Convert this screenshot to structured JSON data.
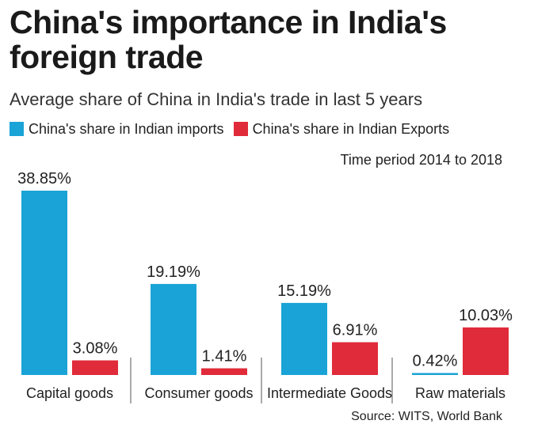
{
  "title": "China's importance in India's foreign trade",
  "subtitle": "Average share of China in India's trade in last 5 years",
  "note": "Time period 2014 to 2018",
  "source": "Source: WITS, World Bank",
  "colors": {
    "imports": "#1aa3d6",
    "exports": "#e02b3a"
  },
  "chart_data": {
    "type": "bar",
    "title": "China's importance in India's foreign trade",
    "subtitle": "Average share of China in India's trade in last 5 years",
    "categories": [
      "Capital goods",
      "Consumer goods",
      "Intermediate Goods",
      "Raw materials"
    ],
    "series": [
      {
        "name": "China's share in Indian imports",
        "values": [
          38.85,
          19.19,
          15.19,
          0.42
        ],
        "labels": [
          "38.85%",
          "19.19%",
          "15.19%",
          "0.42%"
        ]
      },
      {
        "name": "China's share in Indian Exports",
        "values": [
          3.08,
          1.41,
          6.91,
          10.03
        ],
        "labels": [
          "3.08%",
          "1.41%",
          "6.91%",
          "10.03%"
        ]
      }
    ],
    "ylim": [
      0,
      38.85
    ],
    "grid": false,
    "legend": "top-left"
  }
}
